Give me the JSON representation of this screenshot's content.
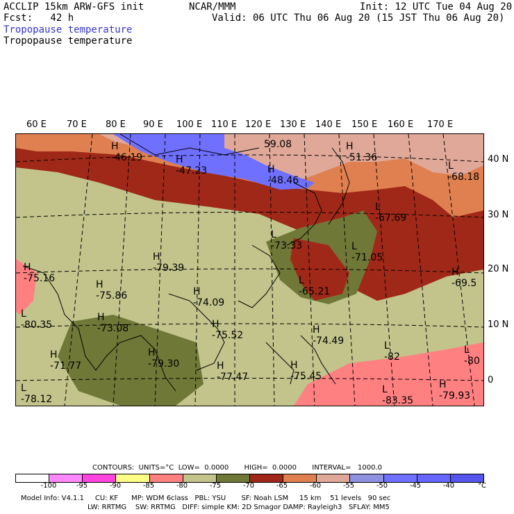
{
  "header": {
    "model": "ACCLIP 15km ARW-GFS init",
    "org": "NCAR/MMM",
    "init": "Init: 12 UTC Tue 04 Aug 20",
    "fcst": "Fcst:   42 h",
    "valid": "Valid: 06 UTC Thu 06 Aug 20 (15 JST Thu 06 Aug 20)",
    "field1": "Tropopause temperature",
    "field2": "Tropopause temperature",
    "field1_color": "#3333cc"
  },
  "lon_labels": [
    "60 E",
    "70 E",
    "80 E",
    "90 E",
    "100 E",
    "110 E",
    "120 E",
    "130 E",
    "140 E",
    "150 E",
    "160 E",
    "170 E"
  ],
  "lat_labels": [
    "40 N",
    "30 N",
    "20 N",
    "10 N",
    "0"
  ],
  "extrema": [
    {
      "type": "H",
      "value": "-46.19"
    },
    {
      "type": "H",
      "value": "-47.23"
    },
    {
      "type": "",
      "value": "59.08"
    },
    {
      "type": "H",
      "value": "-48.46"
    },
    {
      "type": "H",
      "value": "-51.36"
    },
    {
      "type": "L",
      "value": "-68.18"
    },
    {
      "type": "L",
      "value": "-67.69"
    },
    {
      "type": "L",
      "value": "-73.33"
    },
    {
      "type": "L",
      "value": "-71.05"
    },
    {
      "type": "H",
      "value": "-79.39"
    },
    {
      "type": "H",
      "value": "-75.16"
    },
    {
      "type": "H",
      "value": "-75.86"
    },
    {
      "type": "L",
      "value": "-65.21"
    },
    {
      "type": "H",
      "value": "-69.5"
    },
    {
      "type": "H",
      "value": "-74.09"
    },
    {
      "type": "L",
      "value": "-80.35"
    },
    {
      "type": "H",
      "value": "-73.08"
    },
    {
      "type": "H",
      "value": "-75.52"
    },
    {
      "type": "H",
      "value": "-74.49"
    },
    {
      "type": "H",
      "value": "-71.77"
    },
    {
      "type": "H",
      "value": "-79.30"
    },
    {
      "type": "L",
      "value": "-82"
    },
    {
      "type": "L",
      "value": "-80"
    },
    {
      "type": "H",
      "value": "-77.47"
    },
    {
      "type": "H",
      "value": "-75.45"
    },
    {
      "type": "L",
      "value": "-78.12"
    },
    {
      "type": "L",
      "value": "-83.35"
    },
    {
      "type": "H",
      "value": "-79.93"
    }
  ],
  "contours_line": "CONTOURS:  UNITS=°C  LOW=  0.0000       HIGH=  0.0000       INTERVAL=   1000.0",
  "colorbar": {
    "colors": [
      "#ffffff",
      "#ff88ff",
      "#ff44dd",
      "#ffff88",
      "#ff8080",
      "#c2c48c",
      "#707838",
      "#a02818",
      "#e08050",
      "#e0a898",
      "#9090e0",
      "#7070ff",
      "#6666ff",
      "#5555ee"
    ],
    "ticks": [
      "-100",
      "-95",
      "-90",
      "-85",
      "-80",
      "-75",
      "-70",
      "-65",
      "-60",
      "-55",
      "-50",
      "-45",
      "-40",
      "°C"
    ]
  },
  "model_info_1": "Model Info: V4.1.1     CU: KF      MP: WDM 6class   PBL: YSU       SF: Noah LSM     15 km    51 levels   90 sec",
  "model_info_2": "LW: RRTMG    SW: RRTMG   DIFF: simple KM: 2D Smagor DAMP: Rayleigh3   SFLAY: MM5"
}
